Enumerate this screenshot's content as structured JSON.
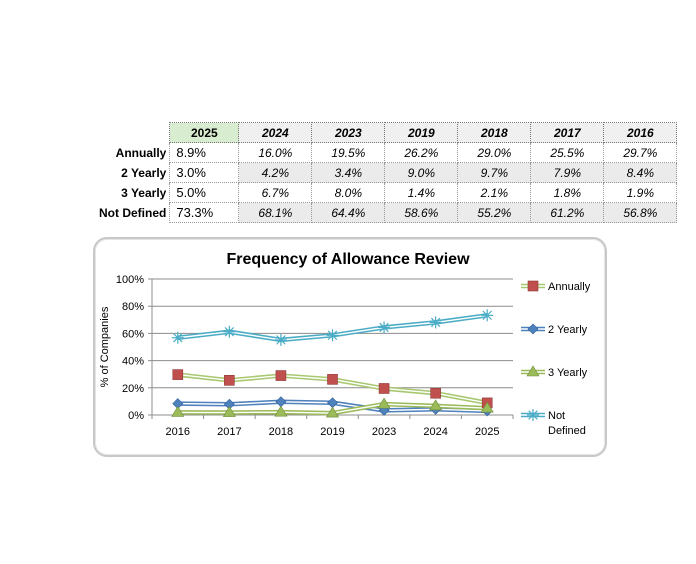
{
  "table": {
    "columns": [
      "2025",
      "2024",
      "2023",
      "2019",
      "2018",
      "2017",
      "2016"
    ],
    "rows": [
      {
        "label": "Annually",
        "values": [
          "8.9%",
          "16.0%",
          "19.5%",
          "26.2%",
          "29.0%",
          "25.5%",
          "29.7%"
        ]
      },
      {
        "label": "2 Yearly",
        "values": [
          "3.0%",
          "4.2%",
          "3.4%",
          "9.0%",
          "9.7%",
          "7.9%",
          "8.4%"
        ]
      },
      {
        "label": "3 Yearly",
        "values": [
          "5.0%",
          "6.7%",
          "8.0%",
          "1.4%",
          "2.1%",
          "1.8%",
          "1.9%"
        ]
      },
      {
        "label": "Not Defined",
        "values": [
          "73.3%",
          "68.1%",
          "64.4%",
          "58.6%",
          "55.2%",
          "61.2%",
          "56.8%"
        ]
      }
    ]
  },
  "chart_data": {
    "type": "line",
    "title": "Frequency of Allowance Review",
    "ylabel": "% of Companies",
    "xlabel": "",
    "categories": [
      "2016",
      "2017",
      "2018",
      "2019",
      "2023",
      "2024",
      "2025"
    ],
    "ylim": [
      0,
      100
    ],
    "yticks": [
      "0%",
      "20%",
      "40%",
      "60%",
      "80%",
      "100%"
    ],
    "grid": true,
    "legend_position": "right",
    "series": [
      {
        "name": "Annually",
        "values": [
          29.7,
          25.5,
          29.0,
          26.2,
          19.5,
          16.0,
          8.9
        ],
        "color": "#c0504d",
        "marker": "square",
        "line_color": "#a8c870"
      },
      {
        "name": "2 Yearly",
        "values": [
          8.4,
          7.9,
          9.7,
          9.0,
          3.4,
          4.2,
          3.0
        ],
        "color": "#4f81bd",
        "marker": "diamond",
        "line_color": "#4f81bd"
      },
      {
        "name": "3 Yearly",
        "values": [
          1.9,
          1.8,
          2.1,
          1.4,
          8.0,
          6.7,
          5.0
        ],
        "color": "#9bbb59",
        "marker": "triangle",
        "line_color": "#9bbb59"
      },
      {
        "name": "Not Defined",
        "values": [
          56.8,
          61.2,
          55.2,
          58.6,
          64.4,
          68.1,
          73.3
        ],
        "color": "#4bacc6",
        "marker": "star",
        "line_color": "#4bacc6"
      }
    ]
  }
}
